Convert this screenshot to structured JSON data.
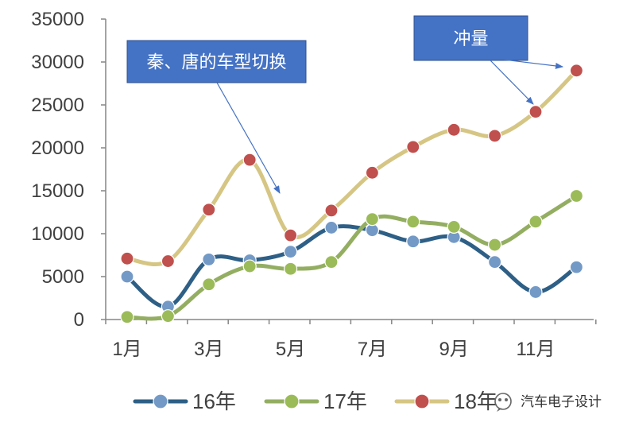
{
  "chart_data": {
    "type": "line",
    "title": "",
    "xlabel": "",
    "ylabel": "",
    "ylim": [
      0,
      35000
    ],
    "yticks": [
      0,
      5000,
      10000,
      15000,
      20000,
      25000,
      30000,
      35000
    ],
    "ytick_labels": [
      "0",
      "5000",
      "10000",
      "15000",
      "20000",
      "25000",
      "30000",
      "35000"
    ],
    "categories": [
      "1月",
      "2月",
      "3月",
      "4月",
      "5月",
      "6月",
      "7月",
      "8月",
      "9月",
      "10月",
      "11月",
      "12月"
    ],
    "xtick_labels": [
      {
        "index": 0,
        "label": "1月"
      },
      {
        "index": 2,
        "label": "3月"
      },
      {
        "index": 4,
        "label": "5月"
      },
      {
        "index": 6,
        "label": "7月"
      },
      {
        "index": 8,
        "label": "9月"
      },
      {
        "index": 10,
        "label": "11月"
      }
    ],
    "series": [
      {
        "name": "16年",
        "color": "#2E5F86",
        "marker_color": "#7399C6",
        "values": [
          5000,
          1500,
          7000,
          6900,
          7900,
          10700,
          10400,
          9100,
          9600,
          6700,
          3200,
          6100
        ]
      },
      {
        "name": "17年",
        "color": "#93AE61",
        "marker_color": "#9BBB59",
        "values": [
          300,
          400,
          4100,
          6200,
          5900,
          6700,
          11700,
          11400,
          10800,
          8700,
          11400,
          14400
        ]
      },
      {
        "name": "18年",
        "color": "#D6C684",
        "marker_color": "#C0504D",
        "values": [
          7100,
          6800,
          12800,
          18600,
          9800,
          12700,
          17100,
          20100,
          22100,
          21400,
          24200,
          29000
        ]
      }
    ],
    "legend_position": "bottom",
    "grid": false,
    "annotations": [
      {
        "text": "秦、唐的车型切换",
        "fill": "#4472C4"
      },
      {
        "text": "冲量",
        "fill": "#4472C4"
      }
    ]
  },
  "watermark": {
    "icon": "wechat-icon",
    "text": "汽车电子设计"
  }
}
